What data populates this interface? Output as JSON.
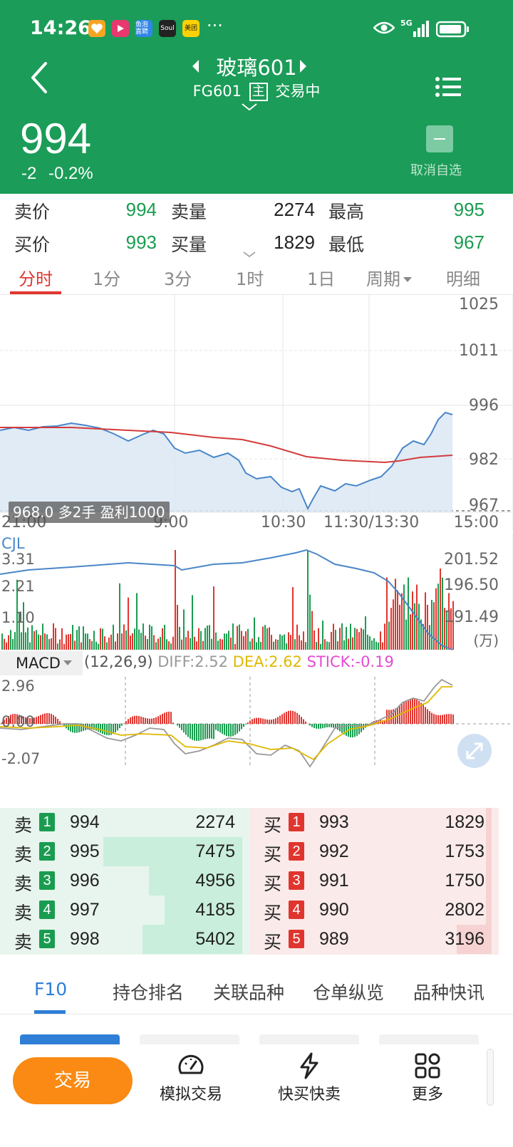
{
  "status_bar": {
    "time": "14:26",
    "app_icons": [
      {
        "name": "app-notification-icon",
        "label": "",
        "color": "#f6a623"
      },
      {
        "name": "video-app-icon",
        "label": "",
        "color": "#e8386f"
      },
      {
        "name": "yupao-app-icon",
        "label": "鱼泡直聘",
        "color": "#2f86e8"
      },
      {
        "name": "soul-app-icon",
        "label": "Soul",
        "color": "#222222"
      },
      {
        "name": "meituan-app-icon",
        "label": "美团",
        "color": "#ffd100"
      }
    ],
    "more": "···",
    "network": "5G"
  },
  "header": {
    "title": "玻璃601",
    "code": "FG601",
    "main_badge": "主",
    "trading_status": "交易中",
    "price": "994",
    "change": "-2",
    "change_pct": "-0.2%",
    "unfav_label": "取消自选",
    "bg_color": "#1b9c58"
  },
  "quote": {
    "rows": [
      {
        "l1": "卖价",
        "v1": "994",
        "l2": "卖量",
        "v2": "2274",
        "l3": "最高",
        "v3": "995"
      },
      {
        "l1": "买价",
        "v1": "993",
        "l2": "买量",
        "v2": "1829",
        "l3": "最低",
        "v3": "967"
      }
    ]
  },
  "tabs": [
    "分时",
    "1分",
    "3分",
    "1时",
    "1日",
    "周期",
    "明细"
  ],
  "intraday": {
    "y_ticks": [
      "1025",
      "1011",
      "996",
      "982",
      "967"
    ],
    "x_ticks": [
      "21:00",
      "9:00",
      "10:30",
      "11:30/13:30",
      "15:00"
    ],
    "position_tag": "968.0 多2手 盈利1000"
  },
  "volume": {
    "label": "CJL",
    "left_ticks": [
      "3.31",
      "2.21",
      "1.10"
    ],
    "right_ticks": [
      "201.52",
      "196.50",
      "191.49"
    ],
    "unit": "(万)"
  },
  "macd": {
    "name": "MACD",
    "params": "(12,26,9)",
    "diff": "DIFF:2.52",
    "dea": "DEA:2.62",
    "stick": "STICK:-0.19",
    "y_ticks": [
      "2.96",
      "0.00",
      "-2.07"
    ]
  },
  "order_book": {
    "sell_label": "卖",
    "buy_label": "买",
    "sell": [
      {
        "n": "1",
        "price": "994",
        "qty": "2274",
        "depth": 0.0
      },
      {
        "n": "2",
        "price": "995",
        "qty": "7475",
        "depth": 1.0
      },
      {
        "n": "3",
        "price": "996",
        "qty": "4956",
        "depth": 0.67
      },
      {
        "n": "4",
        "price": "997",
        "qty": "4185",
        "depth": 0.56
      },
      {
        "n": "5",
        "price": "998",
        "qty": "5402",
        "depth": 0.72
      }
    ],
    "buy": [
      {
        "n": "1",
        "price": "993",
        "qty": "1829",
        "depth": 0.04
      },
      {
        "n": "2",
        "price": "992",
        "qty": "1753",
        "depth": 0.04
      },
      {
        "n": "3",
        "price": "991",
        "qty": "1750",
        "depth": 0.04
      },
      {
        "n": "4",
        "price": "990",
        "qty": "2802",
        "depth": 0.04
      },
      {
        "n": "5",
        "price": "989",
        "qty": "3196",
        "depth": 0.25
      }
    ]
  },
  "f10_tabs": [
    "F10",
    "持仓排名",
    "关联品种",
    "仓单纵览",
    "品种快讯"
  ],
  "bottom_nav": {
    "trade": "交易",
    "items": [
      "模拟交易",
      "快买快卖",
      "更多"
    ]
  }
}
